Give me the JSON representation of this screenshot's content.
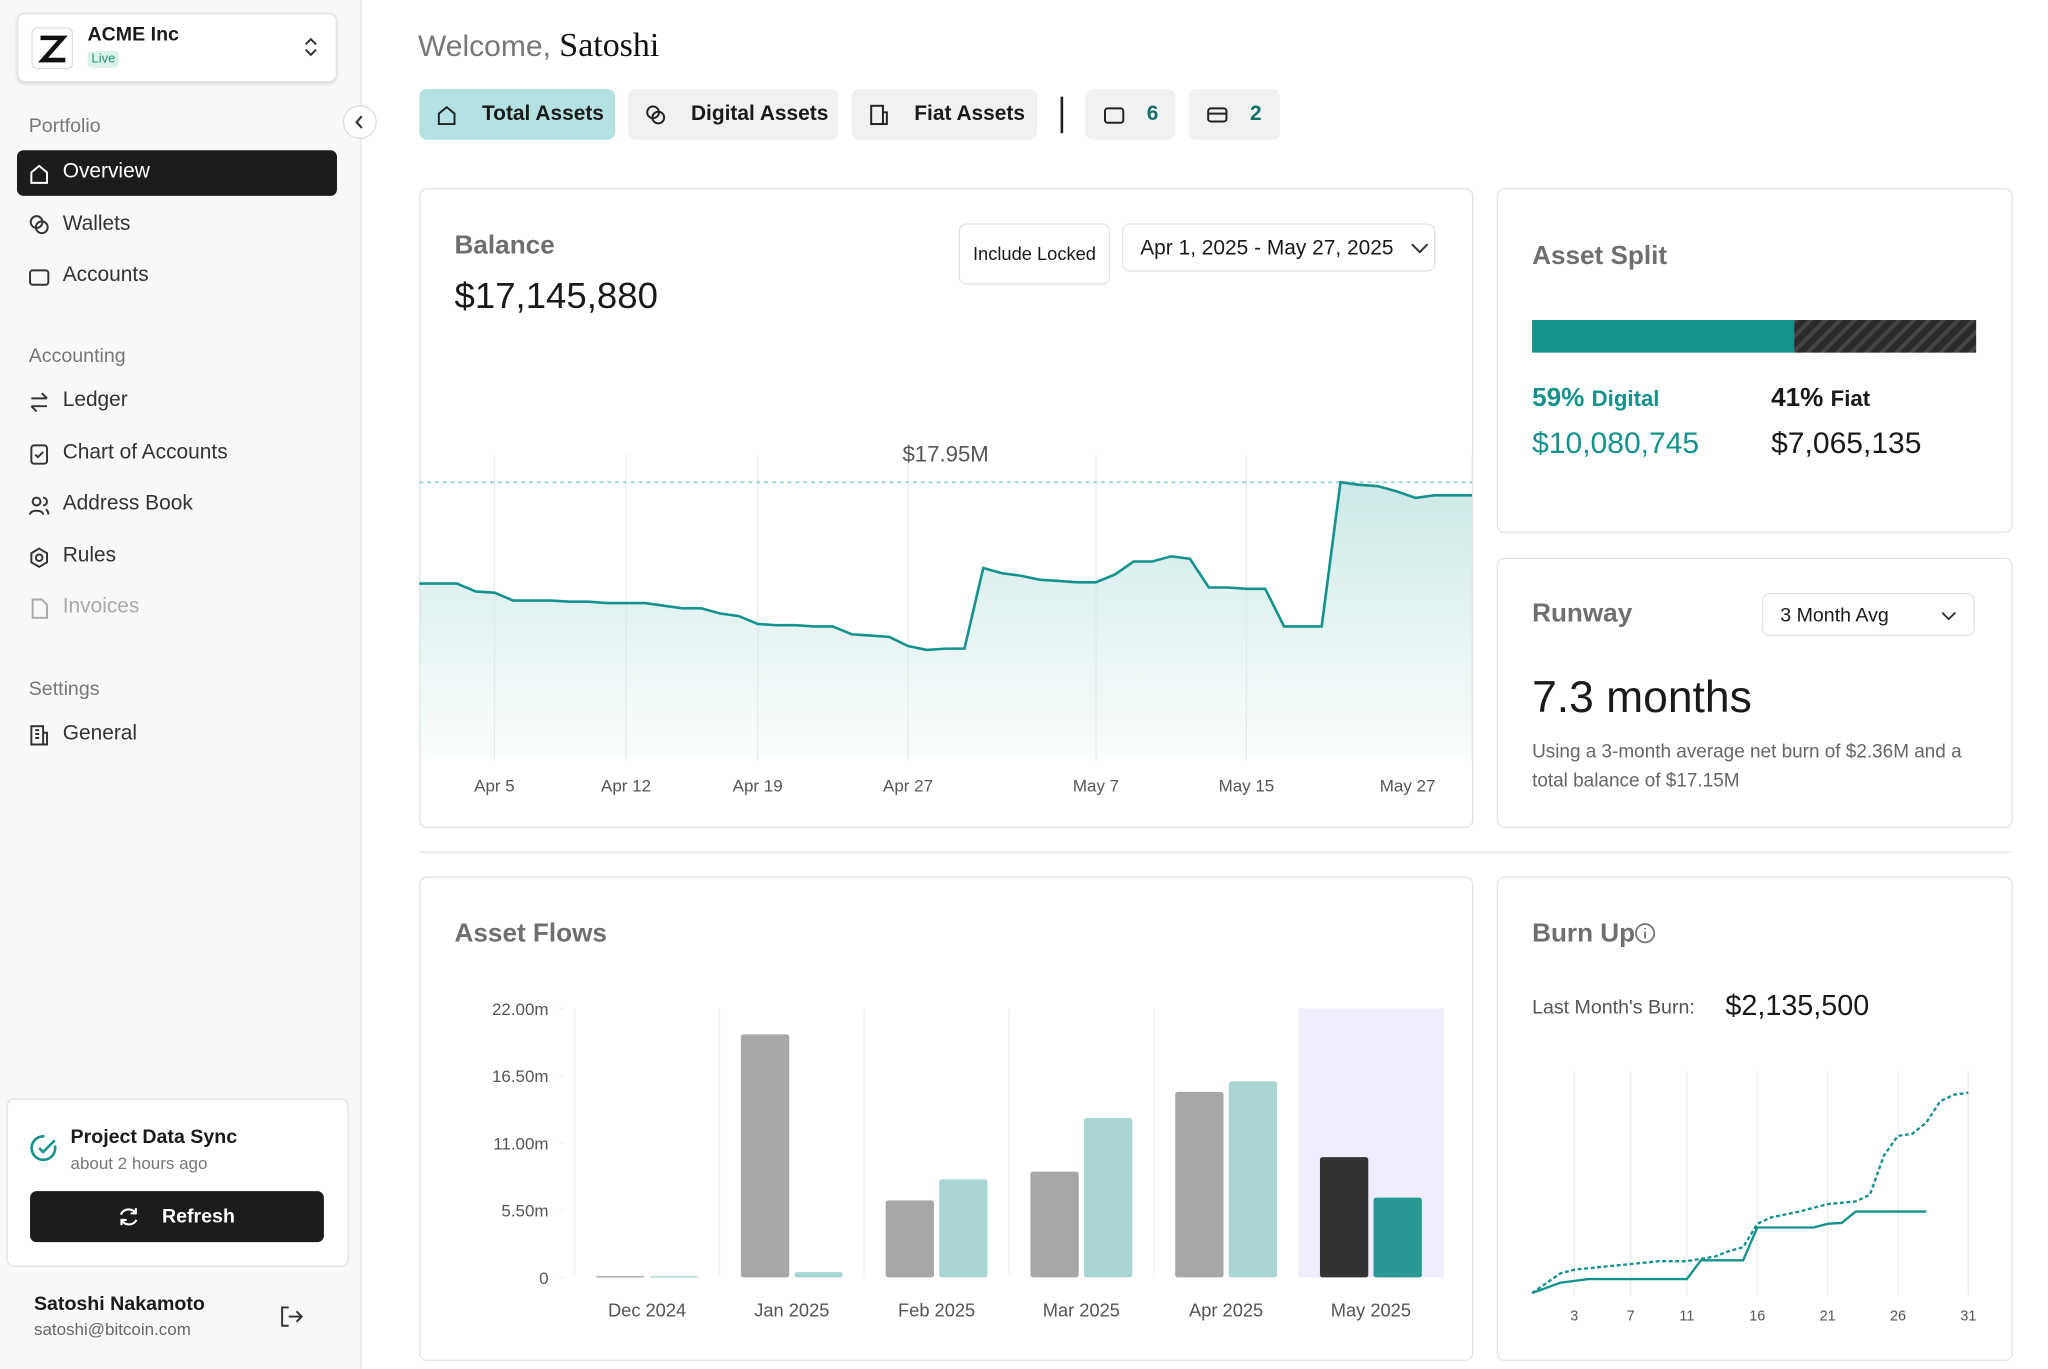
{
  "sidebar": {
    "org": "ACME Inc",
    "status": "Live",
    "sections": [
      {
        "title": "Portfolio",
        "items": [
          "Overview",
          "Wallets",
          "Accounts"
        ]
      },
      {
        "title": "Accounting",
        "items": [
          "Ledger",
          "Chart of Accounts",
          "Address Book",
          "Rules",
          "Invoices"
        ]
      },
      {
        "title": "Settings",
        "items": [
          "General"
        ]
      }
    ],
    "sync": {
      "title": "Project Data Sync",
      "time": "about 2 hours ago",
      "button": "Refresh"
    },
    "user": {
      "name": "Satoshi Nakamoto",
      "email": "satoshi@bitcoin.com"
    }
  },
  "header": {
    "greeting": "Welcome,",
    "name": "Satoshi",
    "tabs": [
      "Total Assets",
      "Digital Assets",
      "Fiat Assets"
    ],
    "counts": [
      6,
      2
    ]
  },
  "asset_split": {
    "title": "Asset Split",
    "segments": [
      {
        "name": "Digital",
        "percent": {
          "value": 59,
          "label": "59%"
        },
        "amount": "$10,080,745",
        "color": "#15928d"
      },
      {
        "name": "Fiat",
        "percent": {
          "value": 41,
          "label": "41%"
        },
        "amount": "$7,065,135",
        "color": "#2b2b2b"
      }
    ]
  },
  "runway": {
    "title": "Runway",
    "select": "3 Month Avg",
    "value": "7.3 months",
    "note": "Using a 3-month average net burn of $2.36M and a total balance of $17.15M"
  },
  "chart_data": [
    {
      "type": "line",
      "title": "Balance",
      "amount": "$17,145,880",
      "toggle": "Include Locked",
      "date_range": "Apr 1, 2025 - May 27, 2025",
      "x": [
        null,
        null,
        null,
        null,
        "Apr 5",
        null,
        null,
        null,
        null,
        null,
        null,
        "Apr 12",
        null,
        null,
        null,
        null,
        null,
        null,
        "Apr 19",
        null,
        null,
        null,
        null,
        null,
        null,
        null,
        "Apr 27",
        null,
        null,
        null,
        null,
        null,
        null,
        null,
        null,
        null,
        "May 7",
        null,
        null,
        null,
        null,
        null,
        null,
        null,
        "May 15",
        null,
        null,
        null,
        null,
        null,
        null,
        null,
        null,
        null,
        null,
        null,
        "May 27"
      ],
      "values": [
        11.71,
        11.71,
        11.71,
        11.23,
        11.15,
        10.67,
        10.67,
        10.67,
        10.59,
        10.59,
        10.51,
        10.51,
        10.51,
        10.35,
        10.19,
        10.19,
        9.87,
        9.71,
        9.23,
        9.15,
        9.15,
        9.07,
        9.07,
        8.59,
        8.51,
        8.43,
        7.87,
        7.63,
        7.71,
        7.71,
        12.67,
        12.35,
        12.19,
        11.95,
        11.87,
        11.79,
        11.79,
        12.27,
        13.07,
        13.07,
        13.39,
        13.23,
        11.47,
        11.47,
        11.39,
        11.39,
        9.07,
        9.07,
        9.07,
        17.95,
        17.79,
        17.71,
        17.39,
        16.99,
        17.15,
        17.15,
        17.15
      ],
      "color": "#15928d",
      "ylim": [
        1,
        20.3
      ],
      "peak": {
        "value": 17.95,
        "label": "$17.95M"
      }
    },
    {
      "type": "bar",
      "title": "Asset Flows",
      "categories": [
        "Dec 2024",
        "Jan 2025",
        "Feb 2025",
        "Mar 2025",
        "Apr 2025",
        "May 2025"
      ],
      "series": [
        {
          "color": "#a6a8a7",
          "highlight_color": "#333333",
          "values": [
            0.1,
            19.87,
            6.3,
            8.65,
            15.17,
            9.83
          ]
        },
        {
          "color": "#a9d5d3",
          "highlight_color": "#2a9994",
          "values": [
            0.1,
            0.43,
            8.01,
            13.03,
            16.03,
            6.52
          ]
        }
      ],
      "highlight_index": 5,
      "highlight_color": "#efedfd",
      "ylim": [
        0,
        22
      ],
      "yticks": [
        0,
        {
          "value": 5.5,
          "label": "5.50m"
        },
        {
          "value": 11,
          "label": "11.00m"
        },
        {
          "value": 16.5,
          "label": "16.50m"
        },
        {
          "value": 22,
          "label": "22.00m"
        }
      ]
    },
    {
      "type": "line",
      "title": "Burn Up",
      "caption": "Last Month's Burn:",
      "amount": "$2,135,500",
      "series": [
        {
          "color": "#15928d",
          "dashed": false,
          "x": [
            0,
            2,
            4,
            11,
            12,
            15,
            16,
            20,
            21,
            22,
            23,
            28
          ],
          "values": [
            0,
            0.11,
            0.15,
            0.15,
            0.35,
            0.35,
            0.7,
            0.7,
            0.74,
            0.75,
            0.87,
            0.87
          ]
        },
        {
          "color": "#15928d",
          "dashed": true,
          "x": [
            0,
            2,
            3,
            5,
            7,
            9,
            11,
            13,
            14,
            15,
            16,
            17,
            19,
            21,
            23,
            24,
            25,
            26,
            27,
            28,
            29,
            30,
            31
          ],
          "values": [
            0,
            0.21,
            0.25,
            0.28,
            0.31,
            0.34,
            0.34,
            0.39,
            0.45,
            0.49,
            0.74,
            0.81,
            0.87,
            0.95,
            0.98,
            1.05,
            1.47,
            1.68,
            1.7,
            1.82,
            2.05,
            2.12,
            2.14
          ]
        }
      ],
      "xlim": [
        0,
        31
      ],
      "xticks": [
        3,
        7,
        11,
        16,
        21,
        26,
        31
      ],
      "ylim": [
        0,
        2.4
      ]
    }
  ]
}
